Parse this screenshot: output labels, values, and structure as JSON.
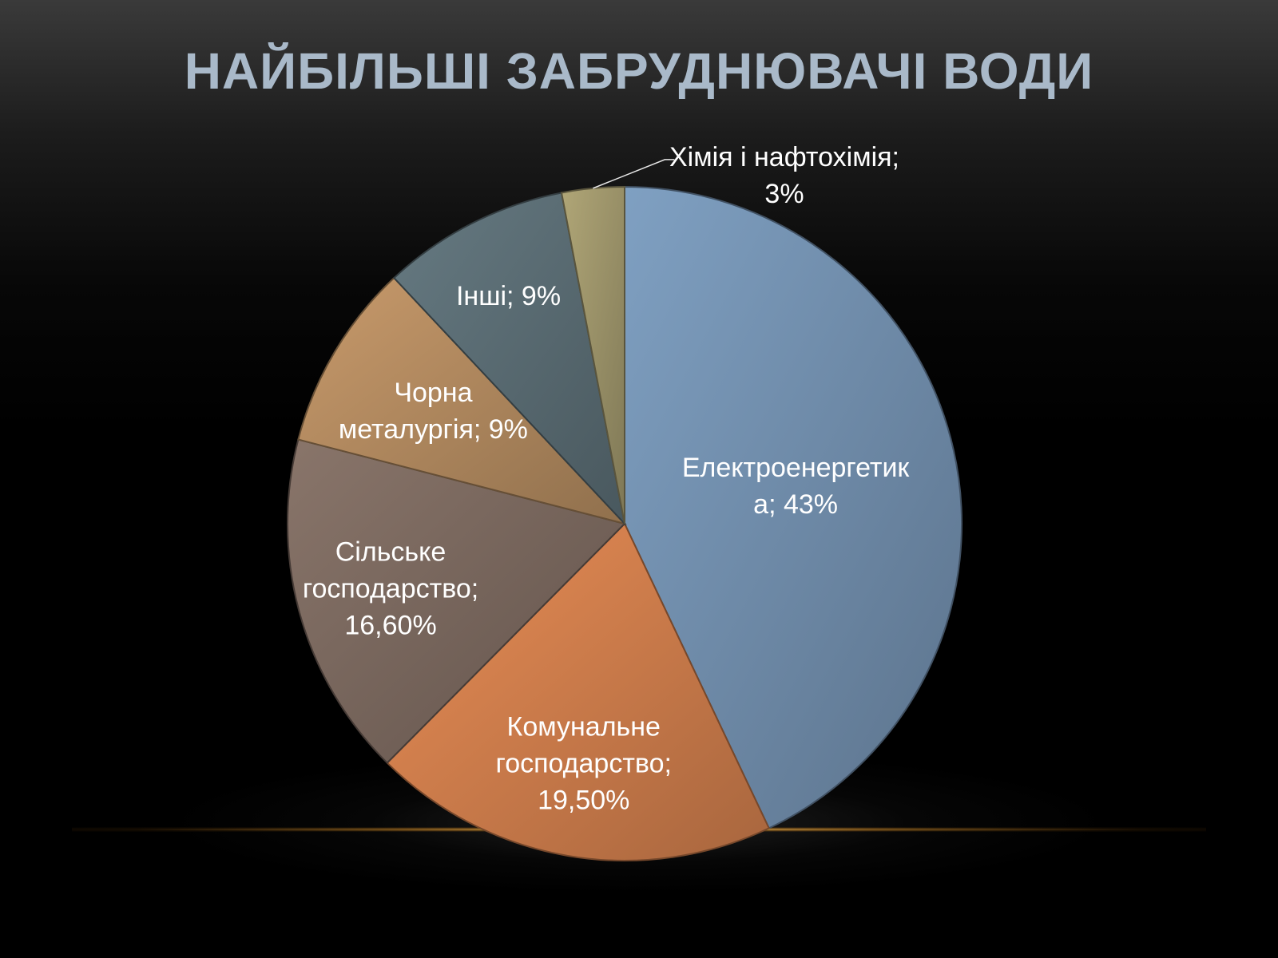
{
  "slide": {
    "title": "НАЙБІЛЬШІ ЗАБРУДНЮВАЧІ ВОДИ"
  },
  "chart_data": {
    "type": "pie",
    "title": "",
    "slices": [
      {
        "category": "Електроенергетика",
        "label_lines": [
          "Електроенергетик",
          "а; 43%"
        ],
        "value": 43,
        "color": "#7694b4"
      },
      {
        "category": "Комунальне господарство",
        "label_lines": [
          "Комунальне",
          "господарство;",
          "19,50%"
        ],
        "value": 19.5,
        "color": "#d8834f"
      },
      {
        "category": "Сільське господарство",
        "label_lines": [
          "Сільське",
          "господарство;",
          "16,60%"
        ],
        "value": 16.6,
        "color": "#7f6c62"
      },
      {
        "category": "Чорна металургія",
        "label_lines": [
          "Чорна",
          "металургія; 9%"
        ],
        "value": 9,
        "color": "#b98f63"
      },
      {
        "category": "Інші",
        "label_lines": [
          "Інші; 9%"
        ],
        "value": 9,
        "color": "#5e7178"
      },
      {
        "category": "Хімія і нафтохімія",
        "label_lines": [
          "Хімія і нафтохімія;",
          "3%"
        ],
        "value": 3,
        "color": "#a39a6e"
      }
    ],
    "start_angle_deg": 0,
    "direction": "clockwise",
    "legend": "none",
    "data_labels": "inside",
    "outside_label_with_leader": "Хімія і нафтохімія"
  }
}
